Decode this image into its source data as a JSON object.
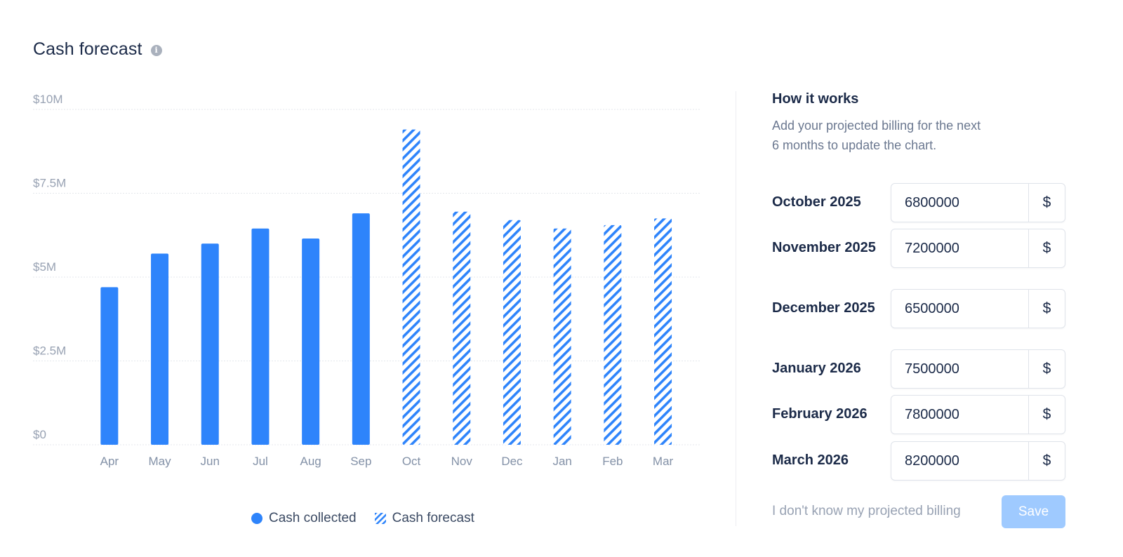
{
  "header": {
    "title": "Cash forecast",
    "info_icon": "info-icon"
  },
  "colors": {
    "accent": "#2e84fb",
    "save_disabled": "#9fcaff",
    "text": "#1b2a48",
    "muted": "#6b7890"
  },
  "chart_data": {
    "type": "bar",
    "categories": [
      "Apr",
      "May",
      "Jun",
      "Jul",
      "Aug",
      "Sep",
      "Oct",
      "Nov",
      "Dec",
      "Jan",
      "Feb",
      "Mar"
    ],
    "series": [
      {
        "name": "Cash collected",
        "style": "solid",
        "values": [
          4.7,
          5.7,
          6.0,
          6.45,
          6.15,
          6.9,
          null,
          null,
          null,
          null,
          null,
          null
        ]
      },
      {
        "name": "Cash forecast",
        "style": "hatched",
        "values": [
          null,
          null,
          null,
          null,
          null,
          null,
          9.4,
          6.95,
          6.7,
          6.45,
          6.55,
          6.75
        ]
      }
    ],
    "yticks": [
      0,
      2.5,
      5,
      7.5,
      10
    ],
    "ytick_labels": [
      "$0",
      "$2.5M",
      "$5M",
      "$7.5M",
      "$10M"
    ],
    "ylim": [
      0,
      10
    ],
    "grid": true,
    "legend_position": "bottom-center"
  },
  "legend": {
    "collected": "Cash collected",
    "forecast": "Cash forecast"
  },
  "how_it_works": {
    "title": "How it works",
    "description": "Add your projected billing for the next 6 months to update the chart."
  },
  "billing_rows": [
    {
      "label": "October 2025",
      "value": "6800000",
      "unit": "$"
    },
    {
      "label": "November 2025",
      "value": "7200000",
      "unit": "$"
    },
    {
      "label": "December 2025",
      "value": "6500000",
      "unit": "$"
    },
    {
      "label": "January 2026",
      "value": "7500000",
      "unit": "$"
    },
    {
      "label": "February 2026",
      "value": "7800000",
      "unit": "$"
    },
    {
      "label": "March 2026",
      "value": "8200000",
      "unit": "$"
    }
  ],
  "footer": {
    "unknown_link": "I don't know my projected billing",
    "save_label": "Save"
  }
}
